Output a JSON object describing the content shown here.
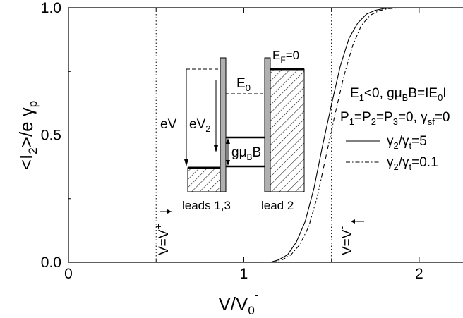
{
  "chart_data": {
    "type": "line",
    "xlabel": "V/V",
    "xlabel_sub": "0",
    "xlabel_sup": "-",
    "ylabel": "<I",
    "ylabel_sub": "2",
    "ylabel_rest": ">/e γ",
    "ylabel_sub2": "p",
    "xlim": [
      0,
      2.25
    ],
    "ylim": [
      0,
      1.0
    ],
    "x_ticks": [
      0,
      1,
      2
    ],
    "x_tick_labels": [
      "0",
      "1",
      "2"
    ],
    "y_ticks": [
      0.0,
      0.5,
      1.0
    ],
    "y_tick_labels": [
      "0.0",
      "0.5",
      "1.0"
    ],
    "vlines": [
      0.5,
      1.5
    ],
    "series": [
      {
        "label_main": "γ",
        "label_sub": "2",
        "label_mid": "/γ",
        "label_sub2": "t",
        "label_tail": "=5",
        "style": "solid",
        "x": [
          1.0,
          1.15,
          1.2,
          1.25,
          1.3,
          1.35,
          1.4,
          1.45,
          1.5,
          1.55,
          1.6,
          1.65,
          1.7,
          1.75,
          1.8,
          1.9,
          2.0,
          2.25
        ],
        "y": [
          0.0,
          0.0,
          0.01,
          0.03,
          0.08,
          0.16,
          0.29,
          0.46,
          0.62,
          0.77,
          0.88,
          0.94,
          0.975,
          0.99,
          0.997,
          1.0,
          1.0,
          1.0
        ]
      },
      {
        "label_main": "γ",
        "label_sub": "2",
        "label_mid": "/γ",
        "label_sub2": "t",
        "label_tail": "=0.1",
        "style": "dashdot",
        "x": [
          1.0,
          1.17,
          1.22,
          1.27,
          1.32,
          1.37,
          1.42,
          1.47,
          1.52,
          1.57,
          1.62,
          1.67,
          1.72,
          1.77,
          1.82,
          1.9,
          2.0,
          2.25
        ],
        "y": [
          0.0,
          0.0,
          0.01,
          0.03,
          0.07,
          0.14,
          0.26,
          0.42,
          0.58,
          0.73,
          0.85,
          0.93,
          0.97,
          0.988,
          0.996,
          1.0,
          1.0,
          1.0
        ]
      }
    ],
    "annotations": {
      "params_line1": {
        "a": "E",
        "a_sub": "1",
        "b": "<0, gμ",
        "b_sub": "B",
        "c": "B=IE",
        "c_sub": "0",
        "d": "I"
      },
      "params_line2": {
        "a": "P",
        "a_sub": "1",
        "b": "=P",
        "b_sub": "2",
        "c": "=P",
        "c_sub": "3",
        "d": "=0, γ",
        "d_sub": "sf",
        "e": "=0"
      },
      "v_left": {
        "main": "V=V",
        "sup": "+"
      },
      "v_right": {
        "main": "V=V",
        "sup": "-"
      }
    },
    "inset": {
      "ef": {
        "main": "E",
        "sub": "F",
        "tail": "=0"
      },
      "e0": {
        "main": "E",
        "sub": "0"
      },
      "ev": "eV",
      "ev2": {
        "main": "eV",
        "sub": "2"
      },
      "gmb": {
        "main": "gμ",
        "sub": "B",
        "tail": "B"
      },
      "leads13": "leads 1,3",
      "lead2": "lead 2"
    }
  }
}
